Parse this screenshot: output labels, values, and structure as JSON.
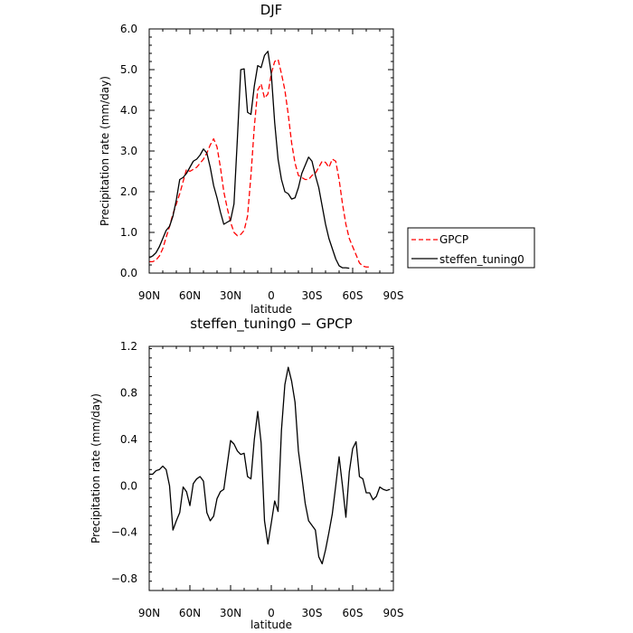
{
  "chart_data": [
    {
      "type": "line",
      "title": "DJF",
      "xlabel": "latitude",
      "ylabel": "Precipitation rate (mm/day)",
      "xlim": [
        90,
        -90
      ],
      "ylim": [
        0,
        6
      ],
      "xticks": [
        90,
        60,
        30,
        0,
        -30,
        -60,
        -90
      ],
      "xtick_labels": [
        "90N",
        "60N",
        "30N",
        "0",
        "30S",
        "60S",
        "90S"
      ],
      "yticks": [
        0,
        1,
        2,
        3,
        4,
        5,
        6
      ],
      "ytick_labels": [
        "0.0",
        "1.0",
        "2.0",
        "3.0",
        "4.0",
        "5.0",
        "6.0"
      ],
      "grid": false,
      "legend_position": "right",
      "series": [
        {
          "name": "GPCP",
          "color": "#ff0000",
          "dash": "dashed",
          "points": [
            [
              90,
              0.28
            ],
            [
              87.5,
              0.28
            ],
            [
              85,
              0.32
            ],
            [
              82.5,
              0.42
            ],
            [
              80,
              0.6
            ],
            [
              77.5,
              0.88
            ],
            [
              75,
              1.15
            ],
            [
              72.5,
              1.45
            ],
            [
              70,
              1.7
            ],
            [
              67.5,
              1.95
            ],
            [
              65,
              2.25
            ],
            [
              62.5,
              2.55
            ],
            [
              60,
              2.5
            ],
            [
              57.5,
              2.55
            ],
            [
              55,
              2.6
            ],
            [
              52.5,
              2.7
            ],
            [
              50,
              2.8
            ],
            [
              47.5,
              2.95
            ],
            [
              45,
              3.15
            ],
            [
              42.5,
              3.3
            ],
            [
              40,
              3.1
            ],
            [
              37.5,
              2.6
            ],
            [
              35,
              2.0
            ],
            [
              32.5,
              1.6
            ],
            [
              30,
              1.25
            ],
            [
              27.5,
              1.0
            ],
            [
              25,
              0.92
            ],
            [
              22.5,
              0.95
            ],
            [
              20,
              1.05
            ],
            [
              17.5,
              1.4
            ],
            [
              15,
              2.4
            ],
            [
              12.5,
              3.6
            ],
            [
              10,
              4.5
            ],
            [
              7.5,
              4.65
            ],
            [
              5,
              4.3
            ],
            [
              2.5,
              4.4
            ],
            [
              0,
              4.9
            ],
            [
              -2.5,
              5.2
            ],
            [
              -5,
              5.25
            ],
            [
              -7.5,
              4.9
            ],
            [
              -10,
              4.5
            ],
            [
              -12.5,
              3.9
            ],
            [
              -15,
              3.2
            ],
            [
              -17.5,
              2.7
            ],
            [
              -20,
              2.4
            ],
            [
              -22.5,
              2.35
            ],
            [
              -25,
              2.3
            ],
            [
              -27.5,
              2.3
            ],
            [
              -30,
              2.4
            ],
            [
              -32.5,
              2.45
            ],
            [
              -35,
              2.6
            ],
            [
              -37.5,
              2.75
            ],
            [
              -40,
              2.72
            ],
            [
              -42.5,
              2.6
            ],
            [
              -45,
              2.8
            ],
            [
              -47.5,
              2.75
            ],
            [
              -50,
              2.3
            ],
            [
              -52.5,
              1.7
            ],
            [
              -55,
              1.2
            ],
            [
              -57.5,
              0.85
            ],
            [
              -60,
              0.65
            ],
            [
              -62.5,
              0.45
            ],
            [
              -65,
              0.25
            ],
            [
              -67.5,
              0.17
            ],
            [
              -70,
              0.15
            ],
            [
              -72.5,
              0.15
            ]
          ]
        },
        {
          "name": "steffen_tuning0",
          "color": "#000000",
          "dash": "solid",
          "points": [
            [
              90,
              0.38
            ],
            [
              87.5,
              0.42
            ],
            [
              85,
              0.5
            ],
            [
              82.5,
              0.65
            ],
            [
              80,
              0.85
            ],
            [
              77.5,
              1.05
            ],
            [
              75,
              1.15
            ],
            [
              72.5,
              1.4
            ],
            [
              70,
              1.8
            ],
            [
              67.5,
              2.3
            ],
            [
              65,
              2.35
            ],
            [
              62.5,
              2.45
            ],
            [
              60,
              2.6
            ],
            [
              57.5,
              2.75
            ],
            [
              55,
              2.8
            ],
            [
              52.5,
              2.9
            ],
            [
              50,
              3.05
            ],
            [
              47.5,
              2.95
            ],
            [
              45,
              2.6
            ],
            [
              42.5,
              2.15
            ],
            [
              40,
              1.85
            ],
            [
              37.5,
              1.5
            ],
            [
              35,
              1.2
            ],
            [
              32.5,
              1.25
            ],
            [
              30,
              1.3
            ],
            [
              27.5,
              1.7
            ],
            [
              25,
              3.3
            ],
            [
              22.5,
              5.0
            ],
            [
              20,
              5.02
            ],
            [
              17.5,
              3.95
            ],
            [
              15,
              3.9
            ],
            [
              12.5,
              4.6
            ],
            [
              10,
              5.1
            ],
            [
              7.5,
              5.05
            ],
            [
              5,
              5.35
            ],
            [
              2.5,
              5.45
            ],
            [
              0,
              4.9
            ],
            [
              -2.5,
              3.7
            ],
            [
              -5,
              2.8
            ],
            [
              -7.5,
              2.3
            ],
            [
              -10,
              2.0
            ],
            [
              -12.5,
              1.95
            ],
            [
              -15,
              1.82
            ],
            [
              -17.5,
              1.85
            ],
            [
              -20,
              2.1
            ],
            [
              -22.5,
              2.45
            ],
            [
              -25,
              2.65
            ],
            [
              -27.5,
              2.85
            ],
            [
              -30,
              2.75
            ],
            [
              -32.5,
              2.4
            ],
            [
              -35,
              2.1
            ],
            [
              -37.5,
              1.65
            ],
            [
              -40,
              1.2
            ],
            [
              -42.5,
              0.85
            ],
            [
              -45,
              0.6
            ],
            [
              -47.5,
              0.35
            ],
            [
              -50,
              0.18
            ],
            [
              -52.5,
              0.13
            ],
            [
              -55,
              0.13
            ],
            [
              -57.5,
              0.12
            ]
          ]
        }
      ]
    },
    {
      "type": "line",
      "title": "steffen_tuning0 − GPCP",
      "xlabel": "latitude",
      "ylabel": "Precipitation rate (mm/day)",
      "xlim": [
        90,
        -90
      ],
      "ylim": [
        -0.9,
        1.2
      ],
      "xticks": [
        90,
        60,
        30,
        0,
        -30,
        -60,
        -90
      ],
      "xtick_labels": [
        "90N",
        "60N",
        "30N",
        "0",
        "30S",
        "60S",
        "90S"
      ],
      "yticks": [
        -0.8,
        -0.4,
        0.0,
        0.4,
        0.8,
        1.2
      ],
      "ytick_labels": [
        "−0.8",
        "−0.4",
        "0.0",
        "0.4",
        "0.8",
        "1.2"
      ],
      "grid": false,
      "series": [
        {
          "name": "",
          "color": "#000000",
          "dash": "solid",
          "points": [
            [
              90,
              0.1
            ],
            [
              87.5,
              0.1
            ],
            [
              85,
              0.13
            ],
            [
              82.5,
              0.14
            ],
            [
              80,
              0.17
            ],
            [
              77.5,
              0.14
            ],
            [
              75,
              0.0
            ],
            [
              72.5,
              -0.38
            ],
            [
              70,
              -0.3
            ],
            [
              67.5,
              -0.23
            ],
            [
              65,
              -0.01
            ],
            [
              62.5,
              -0.05
            ],
            [
              60,
              -0.17
            ],
            [
              57.5,
              0.02
            ],
            [
              55,
              0.06
            ],
            [
              52.5,
              0.08
            ],
            [
              50,
              0.04
            ],
            [
              47.5,
              -0.23
            ],
            [
              45,
              -0.3
            ],
            [
              42.5,
              -0.26
            ],
            [
              40,
              -0.11
            ],
            [
              37.5,
              -0.05
            ],
            [
              35,
              -0.03
            ],
            [
              32.5,
              0.18
            ],
            [
              30,
              0.39
            ],
            [
              27.5,
              0.36
            ],
            [
              25,
              0.3
            ],
            [
              22.5,
              0.27
            ],
            [
              20,
              0.28
            ],
            [
              17.5,
              0.08
            ],
            [
              15,
              0.06
            ],
            [
              12.5,
              0.4
            ],
            [
              10,
              0.64
            ],
            [
              7.5,
              0.37
            ],
            [
              5,
              -0.3
            ],
            [
              2.5,
              -0.5
            ],
            [
              0,
              -0.32
            ],
            [
              -2.5,
              -0.13
            ],
            [
              -5,
              -0.22
            ],
            [
              -7.5,
              0.48
            ],
            [
              -10,
              0.87
            ],
            [
              -12.5,
              1.02
            ],
            [
              -15,
              0.9
            ],
            [
              -17.5,
              0.72
            ],
            [
              -20,
              0.3
            ],
            [
              -22.5,
              0.08
            ],
            [
              -25,
              -0.15
            ],
            [
              -27.5,
              -0.3
            ],
            [
              -30,
              -0.34
            ],
            [
              -32.5,
              -0.38
            ],
            [
              -35,
              -0.61
            ],
            [
              -37.5,
              -0.67
            ],
            [
              -40,
              -0.55
            ],
            [
              -42.5,
              -0.4
            ],
            [
              -45,
              -0.24
            ],
            [
              -47.5,
              0.0
            ],
            [
              -50,
              0.25
            ],
            [
              -52.5,
              0.0
            ],
            [
              -55,
              -0.27
            ],
            [
              -57.5,
              0.12
            ],
            [
              -60,
              0.32
            ],
            [
              -62.5,
              0.38
            ],
            [
              -65,
              0.08
            ],
            [
              -67.5,
              0.06
            ],
            [
              -70,
              -0.06
            ],
            [
              -72.5,
              -0.06
            ],
            [
              -75,
              -0.12
            ],
            [
              -77.5,
              -0.09
            ],
            [
              -80,
              -0.01
            ],
            [
              -82.5,
              -0.03
            ],
            [
              -85,
              -0.04
            ],
            [
              -87.5,
              -0.03
            ]
          ]
        }
      ]
    }
  ]
}
